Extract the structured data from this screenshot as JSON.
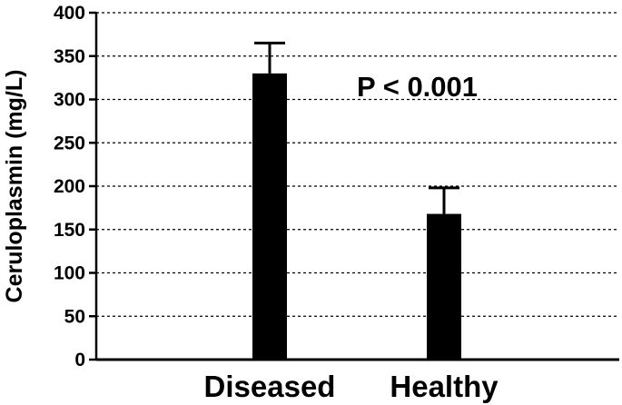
{
  "chart_data": {
    "type": "bar",
    "categories": [
      "Diseased",
      "Healthy"
    ],
    "values": [
      330,
      168
    ],
    "errors": [
      35,
      30
    ],
    "title": "",
    "xlabel": "",
    "ylabel": "Ceruloplasmin (mg/L)",
    "ylim": [
      0,
      400
    ],
    "yticks": [
      0,
      50,
      100,
      150,
      200,
      250,
      300,
      350,
      400
    ],
    "grid": true,
    "annotation": "P < 0.001",
    "bar_color": "#000000"
  }
}
